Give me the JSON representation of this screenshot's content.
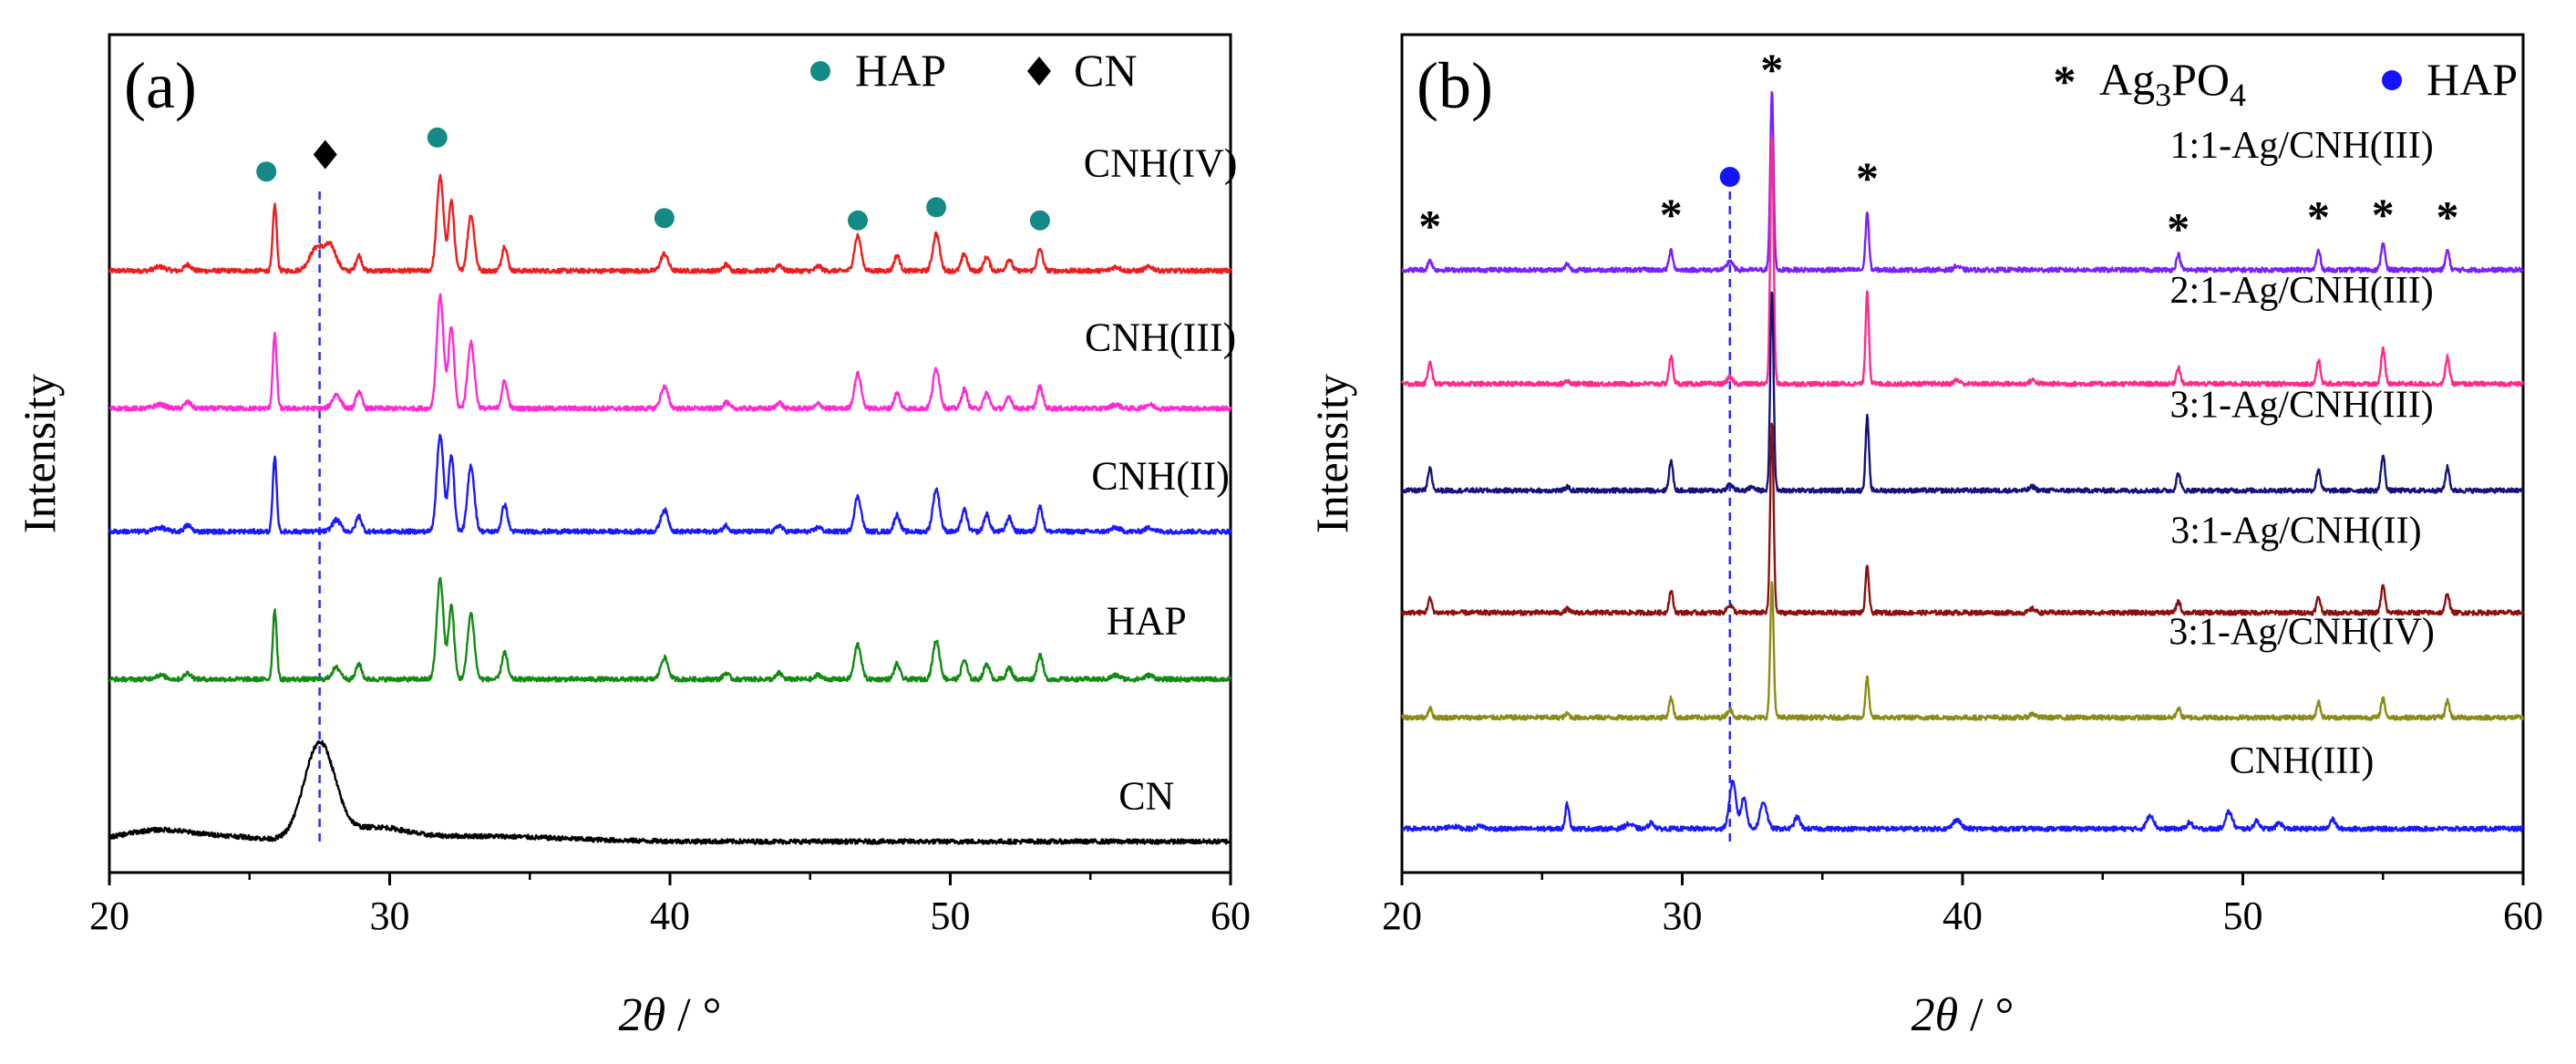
{
  "chart_data": [
    {
      "panel": "(a)",
      "type": "line",
      "title": "",
      "xlabel_prefix": "2",
      "xlabel_symbol": "θ",
      "xlabel_suffix": " / °",
      "ylabel": "Intensity",
      "xlim": [
        20,
        60
      ],
      "xticks": [
        20,
        30,
        40,
        50,
        60
      ],
      "grid": false,
      "dashed_line_x": 27.5,
      "legend": [
        {
          "label": "HAP",
          "marker": "dot",
          "color": "#138a86"
        },
        {
          "label": "CN",
          "marker": "diamond",
          "color": "#000000"
        }
      ],
      "markers": [
        {
          "kind": "dot",
          "x": 25.6,
          "offset": 1.28
        },
        {
          "kind": "diamond",
          "x": 27.7,
          "offset": 1.5
        },
        {
          "kind": "dot",
          "x": 31.7,
          "offset": 1.72
        },
        {
          "kind": "dot",
          "x": 39.8,
          "offset": 0.68
        },
        {
          "kind": "dot",
          "x": 46.7,
          "offset": 0.65
        },
        {
          "kind": "dot",
          "x": 49.5,
          "offset": 0.82
        },
        {
          "kind": "dot",
          "x": 53.2,
          "offset": 0.65
        }
      ],
      "series": [
        {
          "name": "CNH(IV)",
          "color": "#f01c1c",
          "label_x": 57.5,
          "label_offset": 1.22,
          "peaks": [
            [
              21.8,
              0.05,
              0.2
            ],
            [
              22.8,
              0.08,
              0.12
            ],
            [
              25.9,
              0.85,
              0.07
            ],
            [
              27.4,
              0.3,
              0.25
            ],
            [
              27.9,
              0.3,
              0.2
            ],
            [
              28.9,
              0.2,
              0.1
            ],
            [
              31.8,
              1.22,
              0.12
            ],
            [
              32.2,
              0.9,
              0.1
            ],
            [
              32.9,
              0.72,
              0.12
            ],
            [
              34.1,
              0.32,
              0.1
            ],
            [
              39.8,
              0.22,
              0.13
            ],
            [
              42.0,
              0.08,
              0.1
            ],
            [
              43.9,
              0.08,
              0.1
            ],
            [
              45.3,
              0.06,
              0.1
            ],
            [
              46.7,
              0.45,
              0.12
            ],
            [
              48.1,
              0.2,
              0.1
            ],
            [
              49.5,
              0.48,
              0.12
            ],
            [
              50.5,
              0.22,
              0.1
            ],
            [
              51.3,
              0.18,
              0.1
            ],
            [
              52.1,
              0.15,
              0.1
            ],
            [
              53.2,
              0.28,
              0.1
            ],
            [
              55.9,
              0.05,
              0.15
            ],
            [
              57.1,
              0.05,
              0.15
            ]
          ]
        },
        {
          "name": "CNH(III)",
          "color": "#ff2ad4",
          "label_x": 57.5,
          "label_offset": 0.75,
          "peaks": [
            [
              21.8,
              0.05,
              0.2
            ],
            [
              22.8,
              0.08,
              0.12
            ],
            [
              25.9,
              0.95,
              0.07
            ],
            [
              28.1,
              0.18,
              0.15
            ],
            [
              28.9,
              0.22,
              0.1
            ],
            [
              31.8,
              1.45,
              0.12
            ],
            [
              32.2,
              1.05,
              0.1
            ],
            [
              32.9,
              0.85,
              0.12
            ],
            [
              34.1,
              0.35,
              0.1
            ],
            [
              39.8,
              0.28,
              0.13
            ],
            [
              42.0,
              0.08,
              0.1
            ],
            [
              43.9,
              0.08,
              0.1
            ],
            [
              45.3,
              0.06,
              0.1
            ],
            [
              46.7,
              0.45,
              0.12
            ],
            [
              48.1,
              0.2,
              0.1
            ],
            [
              49.5,
              0.52,
              0.12
            ],
            [
              50.5,
              0.25,
              0.1
            ],
            [
              51.3,
              0.2,
              0.1
            ],
            [
              52.1,
              0.15,
              0.1
            ],
            [
              53.2,
              0.28,
              0.1
            ],
            [
              55.9,
              0.05,
              0.15
            ],
            [
              57.1,
              0.05,
              0.15
            ]
          ]
        },
        {
          "name": "CNH(II)",
          "color": "#1a1aff",
          "label_x": 57.5,
          "label_offset": 0.55,
          "peaks": [
            [
              21.8,
              0.05,
              0.2
            ],
            [
              22.8,
              0.08,
              0.12
            ],
            [
              25.9,
              0.95,
              0.07
            ],
            [
              28.1,
              0.15,
              0.15
            ],
            [
              28.9,
              0.2,
              0.1
            ],
            [
              31.8,
              1.25,
              0.12
            ],
            [
              32.2,
              1.0,
              0.1
            ],
            [
              32.9,
              0.85,
              0.12
            ],
            [
              34.1,
              0.35,
              0.1
            ],
            [
              39.8,
              0.28,
              0.13
            ],
            [
              42.0,
              0.08,
              0.1
            ],
            [
              43.9,
              0.08,
              0.1
            ],
            [
              45.3,
              0.06,
              0.1
            ],
            [
              46.7,
              0.45,
              0.12
            ],
            [
              48.1,
              0.22,
              0.1
            ],
            [
              49.5,
              0.55,
              0.12
            ],
            [
              50.5,
              0.28,
              0.1
            ],
            [
              51.3,
              0.22,
              0.1
            ],
            [
              52.1,
              0.18,
              0.1
            ],
            [
              53.2,
              0.32,
              0.1
            ],
            [
              55.9,
              0.05,
              0.15
            ],
            [
              57.1,
              0.05,
              0.15
            ]
          ]
        },
        {
          "name": "HAP",
          "color": "#138b13",
          "label_x": 57.0,
          "label_offset": 0.58,
          "peaks": [
            [
              21.8,
              0.05,
              0.2
            ],
            [
              22.8,
              0.08,
              0.12
            ],
            [
              25.9,
              0.9,
              0.07
            ],
            [
              28.1,
              0.15,
              0.15
            ],
            [
              28.9,
              0.2,
              0.1
            ],
            [
              31.8,
              1.3,
              0.12
            ],
            [
              32.2,
              0.95,
              0.1
            ],
            [
              32.9,
              0.85,
              0.12
            ],
            [
              34.1,
              0.35,
              0.1
            ],
            [
              39.8,
              0.28,
              0.13
            ],
            [
              42.0,
              0.08,
              0.1
            ],
            [
              43.9,
              0.08,
              0.1
            ],
            [
              45.3,
              0.06,
              0.1
            ],
            [
              46.7,
              0.45,
              0.12
            ],
            [
              48.1,
              0.2,
              0.1
            ],
            [
              49.5,
              0.5,
              0.12
            ],
            [
              50.5,
              0.25,
              0.1
            ],
            [
              51.3,
              0.2,
              0.1
            ],
            [
              52.1,
              0.15,
              0.1
            ],
            [
              53.2,
              0.32,
              0.1
            ],
            [
              55.9,
              0.05,
              0.15
            ],
            [
              57.1,
              0.05,
              0.15
            ]
          ]
        },
        {
          "name": "CN",
          "color": "#000000",
          "label_x": 57.0,
          "label_offset": 0.42,
          "peaks": [
            [
              21.8,
              0.15,
              1.3
            ],
            [
              24.5,
              0.05,
              1.0
            ],
            [
              27.5,
              1.25,
              0.55
            ],
            [
              29.5,
              0.15,
              1.0
            ],
            [
              33,
              0.07,
              3.0
            ]
          ]
        }
      ]
    },
    {
      "panel": "(b)",
      "type": "line",
      "title": "",
      "xlabel_prefix": "2",
      "xlabel_symbol": "θ",
      "xlabel_suffix": " / °",
      "ylabel": "Intensity",
      "xlim": [
        20,
        60
      ],
      "xticks": [
        20,
        30,
        40,
        50,
        60
      ],
      "grid": false,
      "dashed_line_x": 31.7,
      "legend": [
        {
          "label": "Ag",
          "sub": "3",
          "label2": "PO",
          "sub2": "4",
          "marker": "star",
          "color": "#000000"
        },
        {
          "label": "HAP",
          "marker": "dot",
          "color": "#1414ff"
        }
      ],
      "markers": [
        {
          "kind": "star",
          "x": 21.0,
          "offset": 0.58
        },
        {
          "kind": "star",
          "x": 29.6,
          "offset": 0.73
        },
        {
          "kind": "dot",
          "x": 31.7,
          "offset": 1.2
        },
        {
          "kind": "star",
          "x": 33.2,
          "offset": 2.6
        },
        {
          "kind": "star",
          "x": 36.6,
          "offset": 1.2
        },
        {
          "kind": "star",
          "x": 47.7,
          "offset": 0.55
        },
        {
          "kind": "star",
          "x": 52.7,
          "offset": 0.7
        },
        {
          "kind": "star",
          "x": 55.0,
          "offset": 0.73
        },
        {
          "kind": "star",
          "x": 57.3,
          "offset": 0.7
        }
      ],
      "series": [
        {
          "name": "1:1-Ag/CNH(III)",
          "color": "#7a1fff",
          "label_x": 52.1,
          "label_offset": 1.45,
          "peaks": [
            [
              21.0,
              0.13,
              0.07
            ],
            [
              25.9,
              0.08,
              0.07
            ],
            [
              29.6,
              0.25,
              0.07
            ],
            [
              31.7,
              0.12,
              0.1
            ],
            [
              33.2,
              2.3,
              0.06
            ],
            [
              36.6,
              0.75,
              0.06
            ],
            [
              39.8,
              0.05,
              0.1
            ],
            [
              47.7,
              0.2,
              0.07
            ],
            [
              52.7,
              0.25,
              0.07
            ],
            [
              55.0,
              0.35,
              0.07
            ],
            [
              57.3,
              0.25,
              0.07
            ]
          ]
        },
        {
          "name": "2:1-Ag/CNH(III)",
          "color": "#ff2a8a",
          "label_x": 52.1,
          "label_offset": 1.05,
          "peaks": [
            [
              21.0,
              0.3,
              0.07
            ],
            [
              25.9,
              0.05,
              0.07
            ],
            [
              29.6,
              0.35,
              0.07
            ],
            [
              31.7,
              0.08,
              0.1
            ],
            [
              33.2,
              3.2,
              0.06
            ],
            [
              36.6,
              1.2,
              0.06
            ],
            [
              39.8,
              0.05,
              0.1
            ],
            [
              42.5,
              0.05,
              0.1
            ],
            [
              47.7,
              0.22,
              0.07
            ],
            [
              52.7,
              0.3,
              0.07
            ],
            [
              55.0,
              0.45,
              0.07
            ],
            [
              57.3,
              0.35,
              0.07
            ]
          ]
        },
        {
          "name": "3:1-Ag/CNH(III)",
          "color": "#141478",
          "label_x": 52.1,
          "label_offset": 0.95,
          "peaks": [
            [
              21.0,
              0.28,
              0.07
            ],
            [
              25.9,
              0.05,
              0.07
            ],
            [
              29.6,
              0.38,
              0.07
            ],
            [
              31.7,
              0.08,
              0.1
            ],
            [
              32.5,
              0.05,
              0.1
            ],
            [
              33.2,
              2.6,
              0.06
            ],
            [
              36.6,
              0.95,
              0.06
            ],
            [
              42.5,
              0.05,
              0.1
            ],
            [
              47.7,
              0.22,
              0.07
            ],
            [
              52.7,
              0.28,
              0.07
            ],
            [
              55.0,
              0.45,
              0.07
            ],
            [
              57.3,
              0.3,
              0.07
            ]
          ]
        },
        {
          "name": "3:1-Ag/CNH(II)",
          "color": "#8c1010",
          "label_x": 51.9,
          "label_offset": 0.9,
          "peaks": [
            [
              21.0,
              0.18,
              0.07
            ],
            [
              25.9,
              0.05,
              0.07
            ],
            [
              29.6,
              0.28,
              0.07
            ],
            [
              31.7,
              0.1,
              0.1
            ],
            [
              33.2,
              2.45,
              0.06
            ],
            [
              36.6,
              0.6,
              0.06
            ],
            [
              42.5,
              0.05,
              0.1
            ],
            [
              47.7,
              0.15,
              0.07
            ],
            [
              52.7,
              0.2,
              0.07
            ],
            [
              55.0,
              0.35,
              0.07
            ],
            [
              57.3,
              0.25,
              0.07
            ]
          ]
        },
        {
          "name": "3:1-Ag/CNH(IV)",
          "color": "#8c8c14",
          "label_x": 52.1,
          "label_offset": 0.95,
          "peaks": [
            [
              21.0,
              0.12,
              0.07
            ],
            [
              25.9,
              0.05,
              0.07
            ],
            [
              29.6,
              0.25,
              0.07
            ],
            [
              31.7,
              0.1,
              0.1
            ],
            [
              33.2,
              1.75,
              0.06
            ],
            [
              36.6,
              0.52,
              0.06
            ],
            [
              42.5,
              0.05,
              0.1
            ],
            [
              47.7,
              0.12,
              0.07
            ],
            [
              52.7,
              0.2,
              0.07
            ],
            [
              55.0,
              0.25,
              0.07
            ],
            [
              57.3,
              0.22,
              0.07
            ]
          ]
        },
        {
          "name": "CNH(III)",
          "color": "#1a1aff",
          "label_x": 52.1,
          "label_offset": 0.72,
          "peaks": [
            [
              21.8,
              0.03,
              0.2
            ],
            [
              22.8,
              0.04,
              0.12
            ],
            [
              25.9,
              0.32,
              0.07
            ],
            [
              28.1,
              0.06,
              0.15
            ],
            [
              28.9,
              0.08,
              0.1
            ],
            [
              31.8,
              0.6,
              0.12
            ],
            [
              32.2,
              0.4,
              0.1
            ],
            [
              32.9,
              0.35,
              0.12
            ],
            [
              34.1,
              0.15,
              0.1
            ],
            [
              39.8,
              0.12,
              0.13
            ],
            [
              46.7,
              0.18,
              0.12
            ],
            [
              48.1,
              0.08,
              0.1
            ],
            [
              49.5,
              0.22,
              0.12
            ],
            [
              50.5,
              0.1,
              0.1
            ],
            [
              51.3,
              0.08,
              0.1
            ],
            [
              53.2,
              0.12,
              0.1
            ]
          ]
        }
      ]
    }
  ]
}
